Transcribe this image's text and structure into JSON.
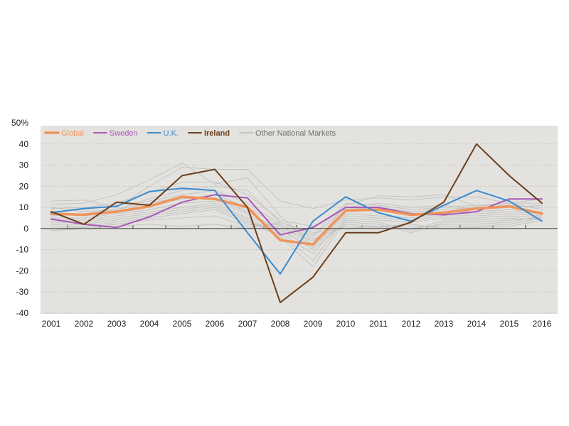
{
  "chart_data": {
    "type": "line",
    "title": "",
    "xlabel": "",
    "ylabel": "",
    "x": [
      2001,
      2002,
      2003,
      2004,
      2005,
      2006,
      2007,
      2008,
      2009,
      2010,
      2011,
      2012,
      2013,
      2014,
      2015,
      2016
    ],
    "ylim": [
      -40,
      50
    ],
    "y_ticks": [
      -40,
      -30,
      -20,
      -10,
      0,
      10,
      20,
      30,
      40
    ],
    "y_top_label": "50%",
    "grid": true,
    "legend_position": "top-left",
    "series": [
      {
        "name": "Global",
        "color": "#f0935a",
        "width": 3.5,
        "values": [
          7,
          6.5,
          8,
          10.5,
          15,
          14,
          10,
          -5.5,
          -7.5,
          8.5,
          9,
          6.5,
          7.5,
          9.5,
          10.5,
          7
        ]
      },
      {
        "name": "Sweden",
        "color": "#a958b8",
        "width": 2,
        "values": [
          4.5,
          2,
          0.5,
          5.5,
          12.5,
          16,
          14.5,
          -3,
          0.5,
          10,
          10,
          7,
          6.5,
          8,
          14,
          14
        ]
      },
      {
        "name": "U.K.",
        "color": "#3a8bd1",
        "width": 2,
        "values": [
          7.5,
          9.5,
          10.5,
          17.5,
          19,
          18,
          -2,
          -21.5,
          3.5,
          15,
          7.5,
          3.5,
          11,
          18,
          13,
          3.5
        ]
      },
      {
        "name": "Ireland",
        "color": "#6b3f1d",
        "width": 2,
        "values": [
          8,
          2,
          12.5,
          11,
          25,
          28,
          10,
          -35,
          -23,
          -2,
          -2,
          3,
          12.5,
          40,
          25,
          12
        ]
      },
      {
        "name": "Other National Markets",
        "color": "#c4c4c4",
        "width": 1
      }
    ],
    "other_markets": [
      [
        13,
        13.5,
        10,
        20,
        29,
        28,
        28,
        13,
        9.5,
        13.5,
        14.5,
        13.5,
        15,
        15,
        12,
        14
      ],
      [
        11.5,
        12,
        16,
        23,
        31,
        21,
        24,
        6,
        -8,
        11,
        15.5,
        15,
        16,
        10.5,
        12,
        12
      ],
      [
        9.5,
        10,
        12,
        17,
        22,
        22,
        16,
        4,
        1,
        9,
        10,
        8,
        9,
        10,
        11,
        10
      ],
      [
        10,
        8,
        9,
        14,
        18,
        20,
        18,
        3,
        -3,
        12,
        11,
        9,
        10,
        11,
        12,
        9
      ],
      [
        8,
        9,
        11,
        13,
        16,
        18,
        12,
        2,
        -4,
        10,
        12,
        10,
        11,
        9,
        10,
        11
      ],
      [
        7,
        6,
        8,
        11,
        14,
        16,
        10,
        1,
        -6,
        8,
        9,
        7,
        8,
        8,
        9,
        8
      ],
      [
        6,
        7,
        9,
        12,
        15,
        14,
        8,
        -1,
        -9,
        7,
        6,
        5,
        7,
        7,
        8,
        7
      ],
      [
        5,
        5,
        7,
        9,
        12,
        13,
        7,
        -2,
        -12,
        6,
        5,
        4,
        6,
        6,
        7,
        6
      ],
      [
        4,
        4,
        6,
        8,
        10,
        12,
        5,
        -3,
        -15,
        5,
        4,
        3,
        5,
        5,
        6,
        5
      ],
      [
        3,
        3,
        5,
        7,
        9,
        11,
        4,
        -4,
        -18,
        4,
        3,
        -1,
        4,
        4,
        5,
        4
      ],
      [
        2,
        2,
        4,
        6,
        8,
        10,
        3,
        0,
        -10,
        3,
        2,
        -2,
        3,
        3,
        4,
        5
      ],
      [
        1,
        1,
        3,
        5,
        7,
        9,
        2,
        1,
        -8,
        2,
        1,
        0,
        2,
        2,
        3,
        6
      ],
      [
        0,
        0.5,
        2,
        4,
        5,
        6,
        1,
        2,
        -5,
        1,
        0.5,
        1,
        1,
        1,
        2,
        5
      ],
      [
        -1,
        0,
        1,
        2,
        1,
        2,
        0,
        3,
        -2,
        0,
        1,
        2,
        0,
        0.5,
        1,
        4
      ]
    ]
  }
}
